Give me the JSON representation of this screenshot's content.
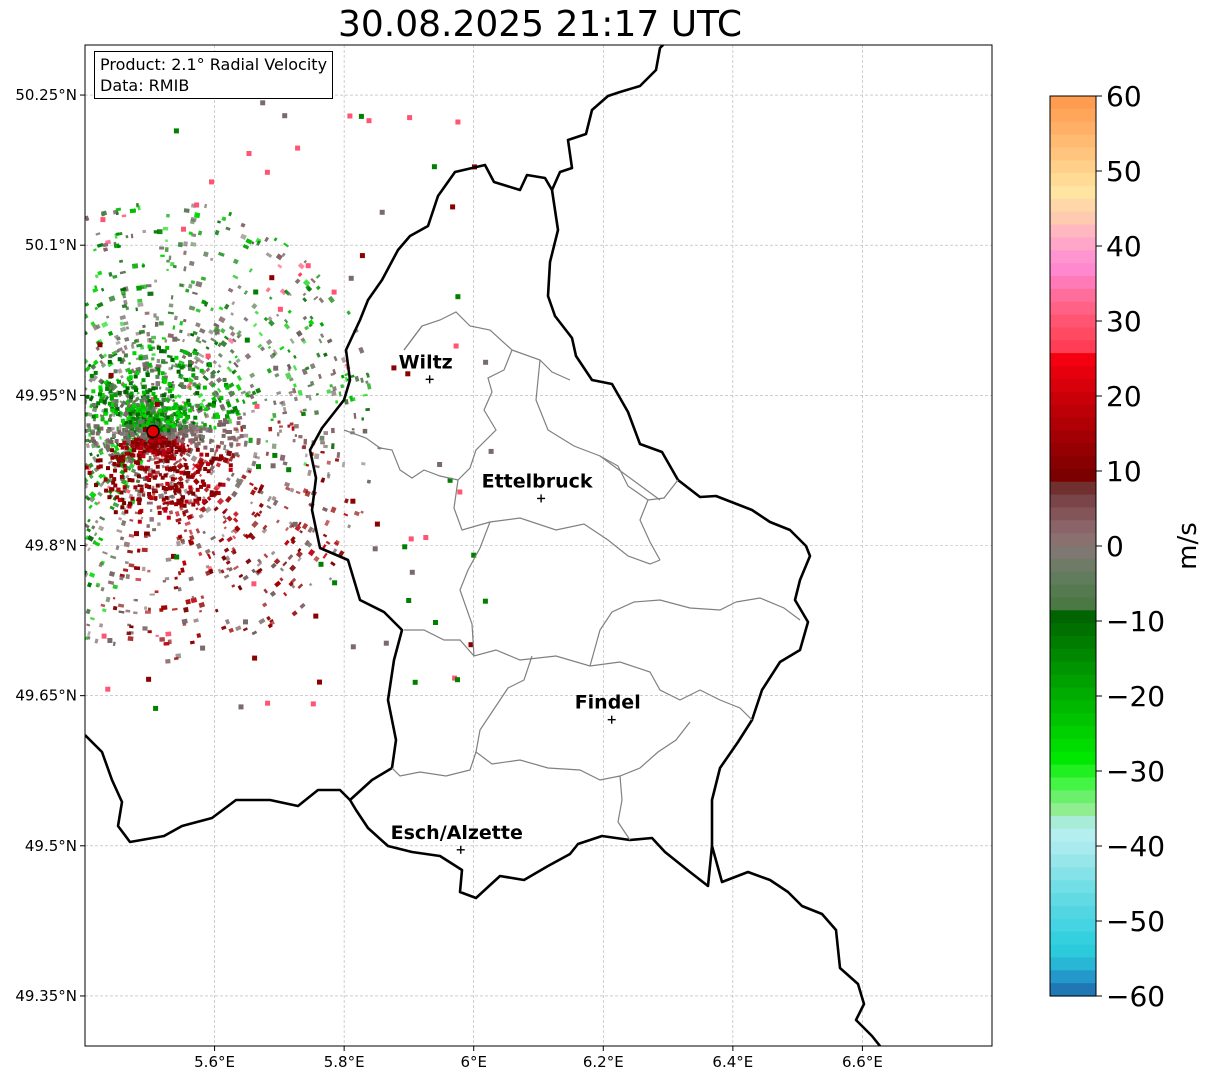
{
  "title": "30.08.2025 21:17 UTC",
  "info": {
    "product": "Product: 2.1° Radial Velocity",
    "data": "Data: RMIB"
  },
  "map": {
    "lon_range": [
      5.4,
      6.8
    ],
    "lat_range": [
      49.3,
      50.3
    ],
    "xticks": [
      {
        "v": 5.6,
        "label": "5.6°E"
      },
      {
        "v": 5.8,
        "label": "5.8°E"
      },
      {
        "v": 6.0,
        "label": "6°E"
      },
      {
        "v": 6.2,
        "label": "6.2°E"
      },
      {
        "v": 6.4,
        "label": "6.4°E"
      },
      {
        "v": 6.6,
        "label": "6.6°E"
      }
    ],
    "yticks": [
      {
        "v": 49.35,
        "label": "49.35°N"
      },
      {
        "v": 49.5,
        "label": "49.5°N"
      },
      {
        "v": 49.65,
        "label": "49.65°N"
      },
      {
        "v": 49.8,
        "label": "49.8°N"
      },
      {
        "v": 49.95,
        "label": "49.95°N"
      },
      {
        "v": 50.1,
        "label": "50.1°N"
      },
      {
        "v": 50.25,
        "label": "50.25°N"
      }
    ],
    "grid": true,
    "radar_site": {
      "lon": 5.505,
      "lat": 49.914
    },
    "cities": [
      {
        "name": "Wiltz",
        "lon": 5.932,
        "lat": 49.966
      },
      {
        "name": "Ettelbruck",
        "lon": 6.104,
        "lat": 49.847
      },
      {
        "name": "Findel",
        "lon": 6.213,
        "lat": 49.626
      },
      {
        "name": "Esch/Alzette",
        "lon": 5.98,
        "lat": 49.496
      }
    ]
  },
  "colorbar": {
    "label": "m/s",
    "range": [
      -60,
      60
    ],
    "ticks": [
      {
        "v": 60,
        "label": "60"
      },
      {
        "v": 50,
        "label": "50"
      },
      {
        "v": 40,
        "label": "40"
      },
      {
        "v": 30,
        "label": "30"
      },
      {
        "v": 20,
        "label": "20"
      },
      {
        "v": 10,
        "label": "10"
      },
      {
        "v": 0,
        "label": "0"
      },
      {
        "v": -10,
        "label": "−10"
      },
      {
        "v": -20,
        "label": "−20"
      },
      {
        "v": -30,
        "label": "−30"
      },
      {
        "v": -40,
        "label": "−40"
      },
      {
        "v": -50,
        "label": "−50"
      },
      {
        "v": -60,
        "label": "−60"
      }
    ],
    "colors_top_to_bottom": [
      "#ff9c4f",
      "#ffa65b",
      "#ffb066",
      "#ffbb72",
      "#ffc57e",
      "#ffd08a",
      "#ffdb96",
      "#ffe5a1",
      "#ffd7a8",
      "#ffcbb0",
      "#ffb8c0",
      "#ffa6c9",
      "#ff95d0",
      "#ff88cf",
      "#ff7ab6",
      "#ff6d9a",
      "#ff6285",
      "#ff5572",
      "#ff4a62",
      "#ff3d55",
      "#f50010",
      "#e6000d",
      "#d8000b",
      "#ca0009",
      "#bd0007",
      "#b00006",
      "#a20004",
      "#950003",
      "#880002",
      "#7b0000",
      "#703030",
      "#7a4548",
      "#835558",
      "#8a6468",
      "#8b7070",
      "#7f7872",
      "#6f7b66",
      "#617c5c",
      "#567a50",
      "#4c7845",
      "#006400",
      "#007000",
      "#007c00",
      "#008800",
      "#009400",
      "#00a000",
      "#00ac00",
      "#00b800",
      "#00c400",
      "#00d000",
      "#00dc00",
      "#00e800",
      "#20f020",
      "#45f545",
      "#6af06a",
      "#90ee90",
      "#a8ecd8",
      "#b4eeee",
      "#a9eaee",
      "#96e6ea",
      "#84e2e8",
      "#72dee6",
      "#62dae4",
      "#52d6e2",
      "#44d4e2",
      "#34d0e0",
      "#2ccbdc",
      "#28b8d6",
      "#2498ca",
      "#1f77b4"
    ]
  }
}
